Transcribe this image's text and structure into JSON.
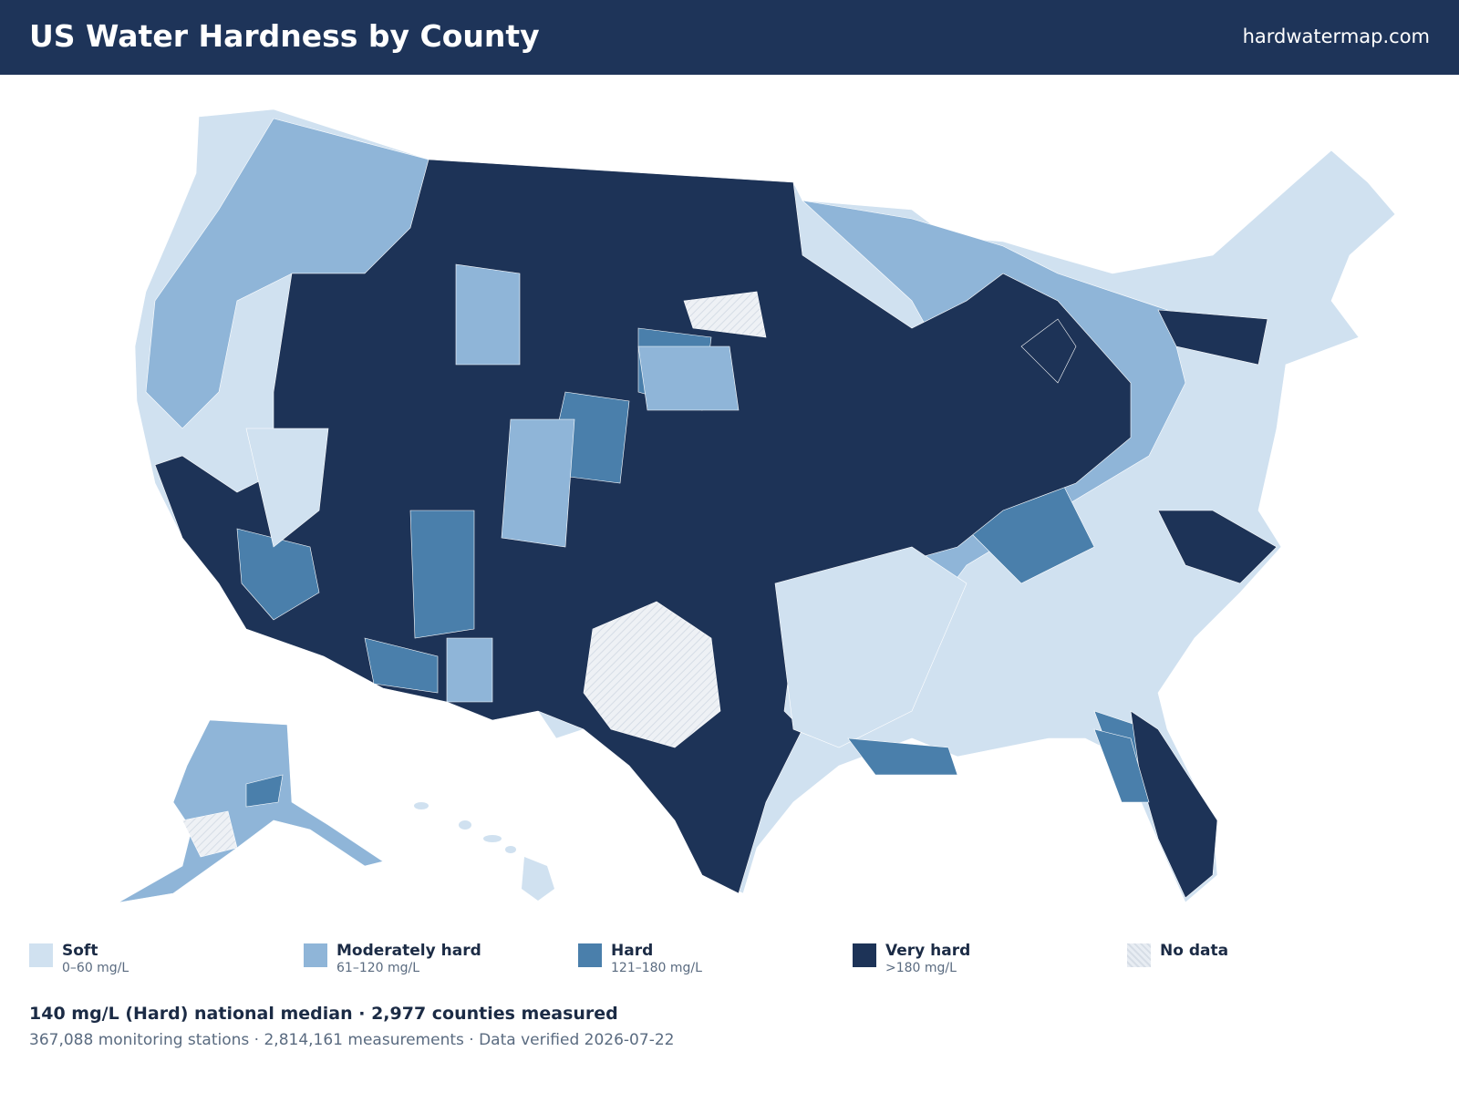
{
  "header": {
    "title": "US Water Hardness by County",
    "site": "hardwatermap.com"
  },
  "legend": [
    {
      "label": "Soft",
      "range": "0–60 mg/L",
      "color": "#d0e1f0"
    },
    {
      "label": "Moderately hard",
      "range": "61–120 mg/L",
      "color": "#8fb5d8"
    },
    {
      "label": "Hard",
      "range": "121–180 mg/L",
      "color": "#4a7fab"
    },
    {
      "label": "Very hard",
      "range": ">180 mg/L",
      "color": "#1d3357"
    },
    {
      "label": "No data",
      "color": "#e8edf3"
    }
  ],
  "summary": {
    "headline": "140 mg/L (Hard) national median · 2,977 counties measured",
    "details": "367,088 monitoring stations · 2,814,161 measurements · Data verified 2026-07-22"
  }
}
